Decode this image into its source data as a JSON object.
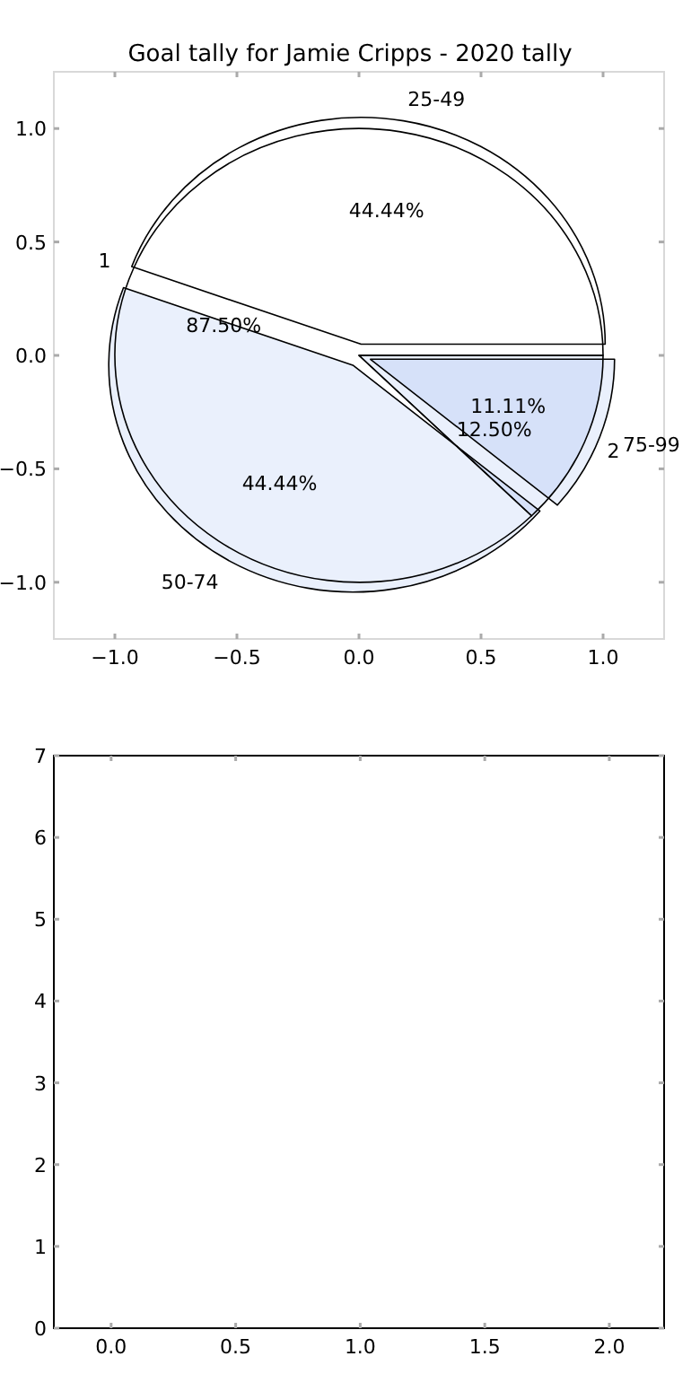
{
  "chart_data": [
    {
      "type": "scatter",
      "title": "Goal tally for Jamie Cripps - 2020 tally",
      "xlim": [
        -1.25,
        1.25
      ],
      "ylim": [
        -1.25,
        1.25
      ],
      "xticks": [
        {
          "value": -1,
          "label": "−1.0"
        },
        {
          "value": -0.5,
          "label": "−0.5"
        },
        {
          "value": 0,
          "label": "0.0"
        },
        {
          "value": 0.5,
          "label": "0.5"
        },
        {
          "value": 1,
          "label": "1.0"
        }
      ],
      "yticks": [
        {
          "value": -1,
          "label": "−1.0"
        },
        {
          "value": -0.5,
          "label": "−0.5"
        },
        {
          "value": 0,
          "label": "0.0"
        },
        {
          "value": 0.5,
          "label": "0.5"
        },
        {
          "value": 1,
          "label": "1.0"
        }
      ]
    },
    {
      "type": "pie",
      "categories": [
        "25-49",
        "50-74",
        "75-99"
      ],
      "values": [
        44.44,
        44.44,
        11.11
      ],
      "value_labels": [
        "44.44%",
        "44.44%",
        "11.11%"
      ],
      "colors": [
        "#ffffff",
        "#eaf0fc",
        "#eaf0fc"
      ]
    },
    {
      "type": "pie",
      "categories": [
        "1",
        "2"
      ],
      "values": [
        87.5,
        12.5
      ],
      "value_labels": [
        "87.50%",
        "12.50%"
      ],
      "colors": [
        "#ffffff",
        "#eaf0fc"
      ]
    },
    {
      "type": "scatter",
      "xlim": [
        -0.23,
        2.22
      ],
      "ylim": [
        0,
        7
      ],
      "xticks": [
        {
          "value": 0,
          "label": "0.0"
        },
        {
          "value": 0.5,
          "label": "0.5"
        },
        {
          "value": 1,
          "label": "1.0"
        },
        {
          "value": 1.5,
          "label": "1.5"
        },
        {
          "value": 2,
          "label": "2.0"
        }
      ],
      "yticks": [
        0,
        1,
        2,
        3,
        4,
        5,
        6,
        7
      ]
    }
  ]
}
